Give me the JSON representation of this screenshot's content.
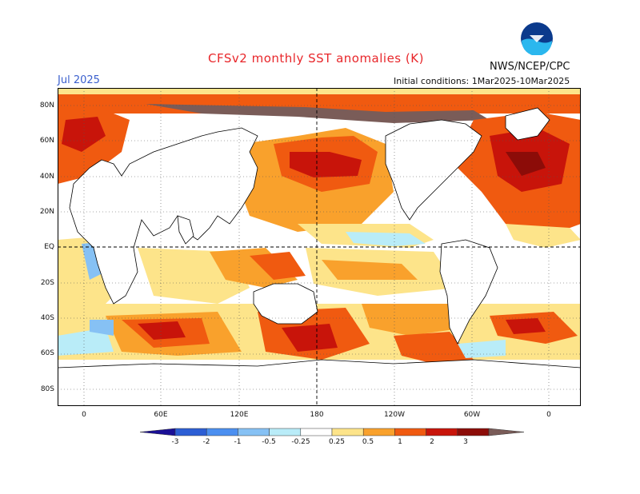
{
  "header": {
    "title": "CFSv2 monthly SST anomalies (K)",
    "org": "NWS/NCEP/CPC",
    "month": "Jul 2025",
    "initial_conditions": "Initial conditions: 1Mar2025-10Mar2025",
    "logo_text": "NOAA"
  },
  "axes": {
    "lat_labels": [
      "80N",
      "60N",
      "40N",
      "20N",
      "EQ",
      "20S",
      "40S",
      "60S",
      "80S"
    ],
    "lon_labels": [
      "0",
      "60E",
      "120E",
      "180",
      "120W",
      "60W",
      "0"
    ]
  },
  "colorbar": {
    "levels": [
      "-3",
      "-2",
      "-1",
      "-0.5",
      "-0.25",
      "0.25",
      "0.5",
      "1",
      "2",
      "3"
    ],
    "colors": [
      "#1a0f96",
      "#2c5ed4",
      "#4b8ff0",
      "#86c1f4",
      "#b9ecf8",
      "#ffffff",
      "#fde48a",
      "#f9a12c",
      "#f05a10",
      "#c8140a",
      "#8c0c08",
      "#7a5c58"
    ]
  },
  "colors": {
    "land": "#ffffff",
    "coast": "#000000",
    "ocean_warm": "#f9a12c",
    "ocean_hot": "#f05a10",
    "ocean_very_hot": "#c8140a",
    "ocean_extreme": "#8c0c08",
    "ocean_mild": "#fde48a",
    "ocean_cool": "#b9ecf8",
    "ocean_cold": "#86c1f4",
    "ice_anomaly": "#7a5c58"
  }
}
